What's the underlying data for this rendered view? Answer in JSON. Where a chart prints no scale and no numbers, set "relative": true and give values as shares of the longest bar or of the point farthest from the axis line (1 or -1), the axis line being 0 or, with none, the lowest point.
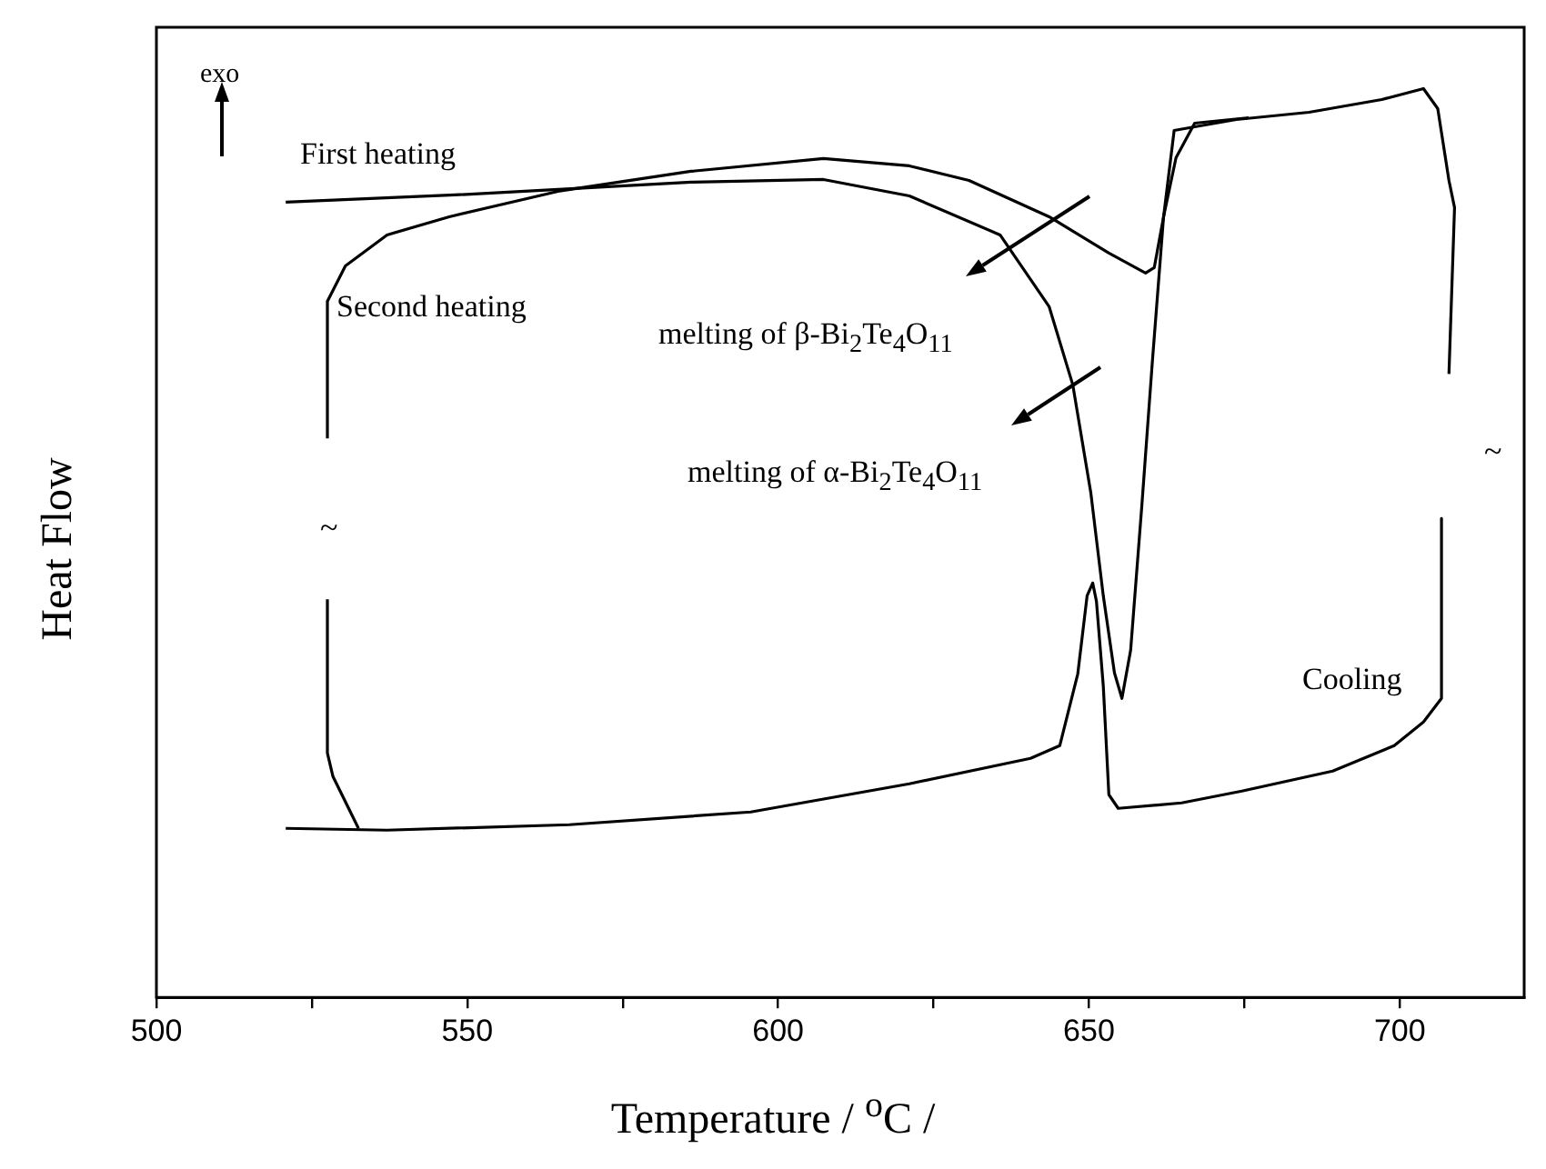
{
  "chart_data": {
    "type": "line",
    "relative": true,
    "xlabel": "Temperature / $^{o}$C /",
    "ylabel": "Heat Flow",
    "xlim": [
      500,
      720
    ],
    "xticks": [
      500,
      {
        "value": 525,
        "label": null
      },
      550,
      {
        "value": 575,
        "label": null
      },
      600,
      {
        "value": 625,
        "label": null
      },
      650,
      {
        "value": 675,
        "label": null
      },
      700
    ],
    "legend": false,
    "grid": false,
    "marker": "none",
    "annotations": [
      "exo",
      "First heating",
      "Second heating",
      "melting of β-Bi$_{2}$Te$_{4}$O$_{11}$",
      "melting of α-Bi$_{2}$Te$_{4}$O$_{11}$",
      "Cooling",
      "~",
      "~"
    ],
    "series": [
      {
        "color": "#000000",
        "x": [
          520.8,
          548.0,
          564.6,
          586.0,
          607.3,
          621.1,
          635.7,
          643.6,
          647.4,
          650.3,
          652.3,
          654.1,
          655.3,
          656.7,
          658.5,
          660.2,
          662.0,
          663.7,
          667.0,
          673.7,
          685.4,
          697.1,
          703.8,
          706.1,
          707.9,
          708.8,
          707.9
        ],
        "values": [
          0.875,
          0.883,
          0.889,
          0.897,
          0.9,
          0.882,
          0.839,
          0.76,
          0.674,
          0.555,
          0.442,
          0.357,
          0.329,
          0.382,
          0.541,
          0.7,
          0.859,
          0.954,
          0.958,
          0.966,
          0.974,
          0.988,
          1.0,
          0.978,
          0.899,
          0.869,
          0.686
        ]
      },
      {
        "color": "#000000",
        "x": [
          532.5,
          528.4,
          527.5,
          527.5,
          null,
          527.5,
          527.5,
          530.4,
          537.1,
          547.1,
          564.6,
          586.0,
          607.3,
          621.1,
          630.7,
          643.6,
          653.2,
          659.1,
          660.5,
          662.0,
          664.0,
          667.0,
          675.7
        ],
        "values": [
          0.186,
          0.243,
          0.269,
          0.438,
          null,
          0.615,
          0.766,
          0.805,
          0.839,
          0.859,
          0.887,
          0.909,
          0.923,
          0.915,
          0.899,
          0.859,
          0.819,
          0.797,
          0.803,
          0.859,
          0.924,
          0.962,
          0.968
        ]
      },
      {
        "color": "#000000",
        "x": [
          706.7,
          706.7,
          703.8,
          699.1,
          689.2,
          674.6,
          664.9,
          654.7,
          653.2,
          652.3,
          651.2,
          650.6,
          649.7,
          648.2,
          645.3,
          640.6,
          621.1,
          595.6,
          566.4,
          537.1,
          520.8
        ],
        "values": [
          0.527,
          0.329,
          0.303,
          0.277,
          0.249,
          0.227,
          0.214,
          0.208,
          0.223,
          0.343,
          0.436,
          0.456,
          0.442,
          0.356,
          0.277,
          0.263,
          0.235,
          0.204,
          0.19,
          0.184,
          0.186
        ]
      }
    ]
  }
}
